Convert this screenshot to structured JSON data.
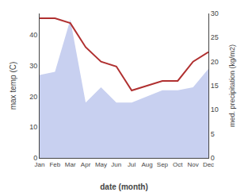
{
  "chart_data": {
    "type": "line",
    "categories": [
      "Jan",
      "Feb",
      "Mar",
      "Apr",
      "May",
      "Jun",
      "Jul",
      "Aug",
      "Sep",
      "Oct",
      "Nov",
      "Dec"
    ],
    "xlabel": "date (month)",
    "ylabel": "max temp (C)",
    "y2label": "med. precipitation (kg/m2)",
    "series": [
      {
        "type": "area",
        "color": "#c8d0f0",
        "values": [
          27,
          28,
          45,
          18,
          23,
          18,
          18,
          20,
          22,
          22,
          23,
          29
        ]
      },
      {
        "type": "line",
        "color": "#b03030",
        "axis": "y2",
        "values": [
          29,
          29,
          28,
          23,
          20,
          19,
          14,
          15,
          16,
          16,
          20,
          22
        ]
      }
    ],
    "ylim": [
      0,
      47
    ],
    "yticks": [
      0,
      10,
      20,
      30,
      40
    ],
    "y2lim": [
      0,
      30
    ],
    "y2ticks": [
      0,
      5,
      10,
      15,
      20,
      25,
      30
    ],
    "grid": false
  }
}
